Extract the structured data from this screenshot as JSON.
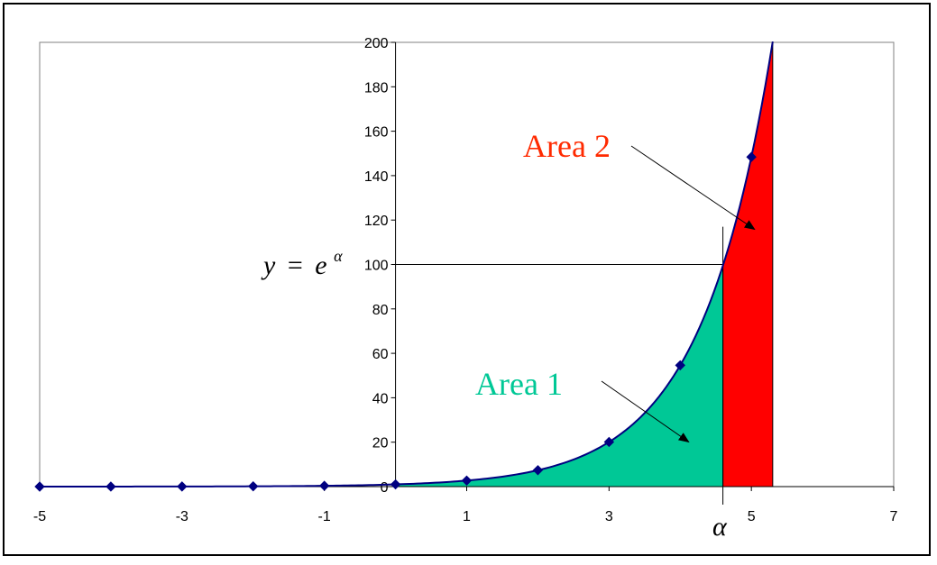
{
  "chart_data": {
    "type": "line",
    "xlim": [
      -5,
      7
    ],
    "ylim": [
      0,
      200
    ],
    "x_ticks": [
      -5,
      -3,
      -1,
      1,
      3,
      5,
      7
    ],
    "y_ticks": [
      0,
      20,
      40,
      60,
      80,
      100,
      120,
      140,
      160,
      180,
      200
    ],
    "grid": false,
    "series": [
      {
        "markers": "diamond",
        "color": "#000080",
        "x": [
          -5,
          -4,
          -3,
          -2,
          -1,
          0,
          1,
          2,
          3,
          4,
          5
        ],
        "y": [
          0.0067,
          0.0183,
          0.0498,
          0.1353,
          0.3679,
          1,
          2.718,
          7.389,
          20.09,
          54.6,
          148.4
        ]
      }
    ],
    "curve": {
      "function": "exp",
      "x_end": 5.3
    },
    "alpha": 4.6,
    "reference_y": 100,
    "fill_area1": {
      "x_from": 0,
      "x_to": 4.6,
      "color": "#00c896"
    },
    "fill_area2": {
      "x_from": 4.6,
      "x_to": 5.3,
      "color": "#ff0000"
    },
    "equation": {
      "y": "y",
      "equals": "=",
      "base": "e",
      "exponent": "α"
    },
    "alpha_label": "α",
    "annotations": [
      {
        "text": "Area 1",
        "color": "#00c896"
      },
      {
        "text": "Area 2",
        "color": "#ff2a00"
      }
    ]
  }
}
